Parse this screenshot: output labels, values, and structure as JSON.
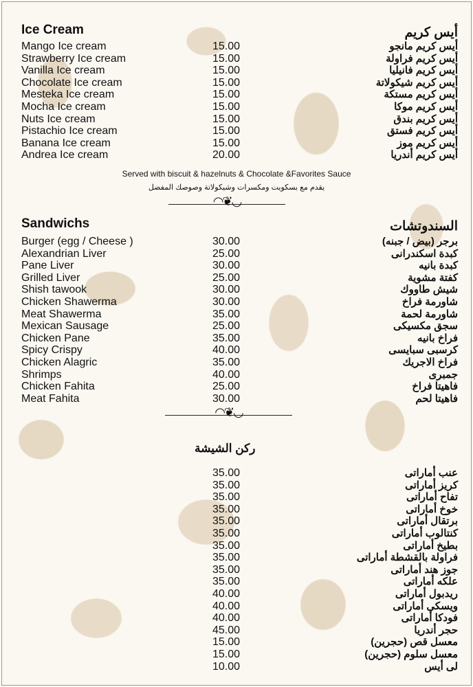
{
  "ice_cream": {
    "title_en": "Ice Cream",
    "title_ar": "أيس كريم",
    "items": [
      {
        "en": "Mango Ice cream",
        "price": "15.00",
        "ar": "أيس كريم مانجو"
      },
      {
        "en": "Strawberry Ice cream",
        "price": "15.00",
        "ar": "أيس كريم فراولة"
      },
      {
        "en": "Vanilla Ice cream",
        "price": "15.00",
        "ar": "أيس كريم فانيليا"
      },
      {
        "en": "Chocolate Ice cream",
        "price": "15.00",
        "ar": "أيس كريم شيكولاتة"
      },
      {
        "en": "Mesteka Ice cream",
        "price": "15.00",
        "ar": "أيس كريم مستكة"
      },
      {
        "en": "Mocha Ice cream",
        "price": "15.00",
        "ar": "أيس كريم موكا"
      },
      {
        "en": "Nuts Ice cream",
        "price": "15.00",
        "ar": "أيس كريم بندق"
      },
      {
        "en": "Pistachio Ice cream",
        "price": "15.00",
        "ar": "أيس كريم فستق"
      },
      {
        "en": "Banana Ice cream",
        "price": "15.00",
        "ar": "أيس كريم موز"
      },
      {
        "en": "Andrea Ice cream",
        "price": "20.00",
        "ar": "أيس كريم أندريا"
      }
    ],
    "note_en": "Served with biscuit & hazelnuts & Chocolate &Favorites Sauce",
    "note_ar": "يقدم مع بسكويت ومكسرات وشيكولاتة وصوصك المفضل"
  },
  "sandwiches": {
    "title_en": "Sandwichs",
    "title_ar": "السندوتشات",
    "items": [
      {
        "en": "Burger (egg / Cheese )",
        "price": "30.00",
        "ar": "برجر (بيض / جبنه)"
      },
      {
        "en": "Alexandrian Liver",
        "price": "25.00",
        "ar": "كبدة اسكندرانى"
      },
      {
        "en": "Pane Liver",
        "price": "30.00",
        "ar": "كبدة بانيه"
      },
      {
        "en": "Grilled Liver",
        "price": "25.00",
        "ar": "كفتة مشوية"
      },
      {
        "en": "Shish tawook",
        "price": "30.00",
        "ar": "شيش طاووك"
      },
      {
        "en": "Chicken Shawerma",
        "price": "30.00",
        "ar": "شاورمة فراخ"
      },
      {
        "en": "Meat Shawerma",
        "price": "35.00",
        "ar": "شاورمة لحمة"
      },
      {
        "en": "Mexican Sausage",
        "price": "25.00",
        "ar": "سجق مكسيكى"
      },
      {
        "en": "Chicken Pane",
        "price": "35.00",
        "ar": "فراخ بانيه"
      },
      {
        "en": "Spicy Crispy",
        "price": "40.00",
        "ar": "كرسبى سبايسى"
      },
      {
        "en": "Chicken Alagric",
        "price": "35.00",
        "ar": "فراخ الاجريك"
      },
      {
        "en": "Shrimps",
        "price": "40.00",
        "ar": "جمبرى"
      },
      {
        "en": "Chicken Fahita",
        "price": "25.00",
        "ar": "فاهيتا فراخ"
      },
      {
        "en": "Meat Fahita",
        "price": "30.00",
        "ar": "فاهيتا لحم"
      }
    ]
  },
  "shisha": {
    "title_ar": "ركن الشيشة",
    "items": [
      {
        "price": "35.00",
        "ar": "عنب أماراتى"
      },
      {
        "price": "35.00",
        "ar": "كريز أماراتى"
      },
      {
        "price": "35.00",
        "ar": "تفاح أماراتى"
      },
      {
        "price": "35.00",
        "ar": "خوخ أماراتى"
      },
      {
        "price": "35.00",
        "ar": "برتقال أماراتى"
      },
      {
        "price": "35.00",
        "ar": "كنتالوب أماراتى"
      },
      {
        "price": "35.00",
        "ar": "بطيخ أماراتى"
      },
      {
        "price": "35.00",
        "ar": "فراولة بالقشطة أماراتى"
      },
      {
        "price": "35.00",
        "ar": "جوز هند أماراتى"
      },
      {
        "price": "35.00",
        "ar": "علكه أماراتى"
      },
      {
        "price": "40.00",
        "ar": "ريدبول أماراتى"
      },
      {
        "price": "40.00",
        "ar": "ويسكى أماراتى"
      },
      {
        "price": "40.00",
        "ar": "فودكا أماراتى"
      },
      {
        "price": "45.00",
        "ar": "حجر أندريا"
      },
      {
        "price": "15.00",
        "ar": "معسل قص (حجرين)"
      },
      {
        "price": "15.00",
        "ar": "معسل سلوم (حجرين)"
      },
      {
        "price": "10.00",
        "ar": "لى أيس"
      }
    ]
  },
  "colors": {
    "background": "#fbf8f2",
    "pattern": "#e6d9c4",
    "text": "#111111"
  }
}
